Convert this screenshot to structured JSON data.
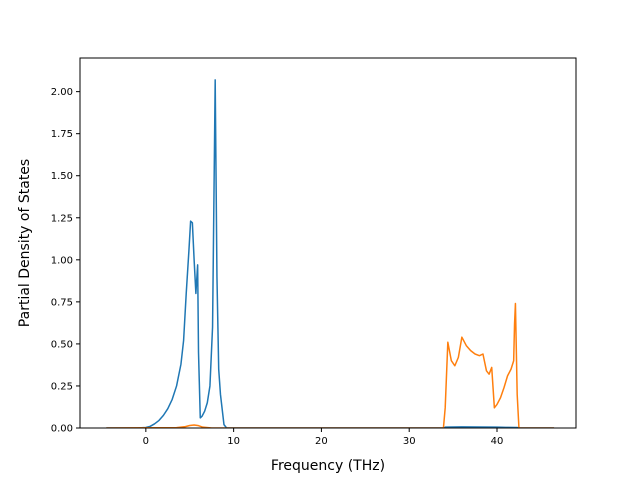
{
  "chart_data": {
    "type": "line",
    "title": "",
    "xlabel": "Frequency (THz)",
    "ylabel": "Partial Density of States",
    "xlim": [
      -7.5,
      49.0
    ],
    "ylim": [
      0,
      2.2
    ],
    "xticks": [
      0,
      10,
      20,
      30,
      40
    ],
    "yticks": [
      0.0,
      0.25,
      0.5,
      0.75,
      1.0,
      1.25,
      1.5,
      1.75,
      2.0
    ],
    "xtick_labels": [
      "0",
      "10",
      "20",
      "30",
      "40"
    ],
    "ytick_labels": [
      "0.00",
      "0.25",
      "0.50",
      "0.75",
      "1.00",
      "1.25",
      "1.50",
      "1.75",
      "2.00"
    ],
    "grid": false,
    "legend": null,
    "series": [
      {
        "color": "#1f77b4",
        "x": [
          -4.5,
          -1.0,
          0.0,
          0.5,
          1.0,
          1.5,
          2.0,
          2.5,
          3.0,
          3.5,
          4.0,
          4.3,
          4.6,
          4.9,
          5.1,
          5.3,
          5.5,
          5.7,
          5.9,
          6.0,
          6.2,
          6.4,
          6.7,
          7.0,
          7.3,
          7.6,
          7.9,
          8.1,
          8.3,
          8.5,
          8.9,
          9.2,
          15,
          20,
          25,
          30,
          33.9,
          34.1,
          35,
          36,
          38,
          40,
          41,
          42.3,
          42.5,
          46.5
        ],
        "y": [
          0.0,
          0.0,
          0.003,
          0.01,
          0.025,
          0.045,
          0.075,
          0.115,
          0.17,
          0.25,
          0.38,
          0.52,
          0.8,
          1.05,
          1.23,
          1.22,
          1.0,
          0.8,
          0.97,
          0.45,
          0.06,
          0.07,
          0.1,
          0.15,
          0.25,
          0.6,
          2.07,
          0.9,
          0.35,
          0.2,
          0.02,
          0.0,
          0.0,
          0.0,
          0.0,
          0.0,
          0.0,
          0.005,
          0.006,
          0.007,
          0.006,
          0.005,
          0.004,
          0.003,
          0.0,
          0.0
        ]
      },
      {
        "color": "#ff7f0e",
        "x": [
          -4.5,
          3.5,
          4.5,
          5.0,
          5.5,
          6.0,
          6.5,
          7.5,
          10,
          20,
          30,
          33.9,
          34.1,
          34.4,
          34.8,
          35.2,
          35.6,
          36.0,
          36.5,
          37.0,
          37.5,
          38.0,
          38.4,
          38.8,
          39.1,
          39.4,
          39.7,
          40.0,
          40.4,
          40.8,
          41.2,
          41.6,
          41.9,
          42.0,
          42.1,
          42.3,
          42.5,
          46.5
        ],
        "y": [
          0.0,
          0.002,
          0.008,
          0.015,
          0.018,
          0.014,
          0.005,
          0.0,
          0.0,
          0.0,
          0.0,
          0.0,
          0.12,
          0.51,
          0.4,
          0.37,
          0.42,
          0.54,
          0.49,
          0.46,
          0.44,
          0.43,
          0.44,
          0.34,
          0.32,
          0.36,
          0.12,
          0.14,
          0.18,
          0.24,
          0.31,
          0.35,
          0.4,
          0.62,
          0.74,
          0.2,
          0.0,
          0.0
        ]
      }
    ]
  }
}
